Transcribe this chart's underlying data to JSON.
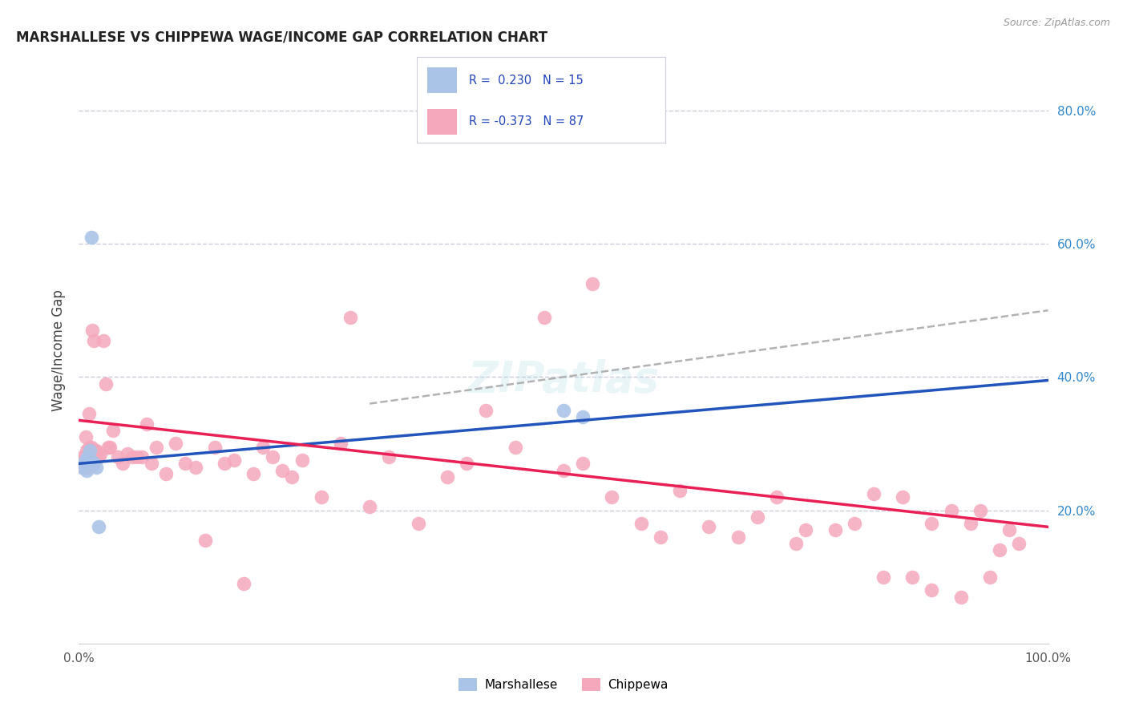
{
  "title": "MARSHALLESE VS CHIPPEWA WAGE/INCOME GAP CORRELATION CHART",
  "source": "Source: ZipAtlas.com",
  "ylabel": "Wage/Income Gap",
  "right_yticks": [
    "20.0%",
    "40.0%",
    "60.0%",
    "80.0%"
  ],
  "right_ytick_vals": [
    0.2,
    0.4,
    0.6,
    0.8
  ],
  "marshallese_color": "#aac4e8",
  "chippewa_color": "#f5a8bc",
  "marshallese_line_color": "#2255bb",
  "chippewa_line_color": "#e82055",
  "dashed_line_color": "#aaaaaa",
  "background_color": "#ffffff",
  "grid_color": "#ccccdd",
  "legend_box_color": "#f0f4ff",
  "marshallese_x": [
    0.003,
    0.005,
    0.006,
    0.007,
    0.008,
    0.009,
    0.01,
    0.011,
    0.012,
    0.013,
    0.015,
    0.018,
    0.02,
    0.5,
    0.52
  ],
  "marshallese_y": [
    0.265,
    0.27,
    0.27,
    0.275,
    0.26,
    0.28,
    0.275,
    0.29,
    0.275,
    0.61,
    0.27,
    0.265,
    0.175,
    0.35,
    0.34
  ],
  "chippewa_x": [
    0.003,
    0.004,
    0.005,
    0.006,
    0.007,
    0.008,
    0.009,
    0.01,
    0.01,
    0.011,
    0.012,
    0.013,
    0.014,
    0.015,
    0.016,
    0.018,
    0.02,
    0.022,
    0.025,
    0.028,
    0.03,
    0.032,
    0.035,
    0.04,
    0.045,
    0.05,
    0.055,
    0.06,
    0.065,
    0.07,
    0.075,
    0.08,
    0.09,
    0.1,
    0.11,
    0.12,
    0.13,
    0.14,
    0.15,
    0.16,
    0.17,
    0.18,
    0.19,
    0.2,
    0.21,
    0.22,
    0.23,
    0.25,
    0.27,
    0.28,
    0.3,
    0.32,
    0.35,
    0.38,
    0.4,
    0.42,
    0.45,
    0.48,
    0.5,
    0.52,
    0.53,
    0.55,
    0.58,
    0.6,
    0.62,
    0.65,
    0.68,
    0.7,
    0.72,
    0.74,
    0.75,
    0.78,
    0.8,
    0.82,
    0.83,
    0.85,
    0.86,
    0.88,
    0.88,
    0.9,
    0.91,
    0.92,
    0.93,
    0.94,
    0.95,
    0.96,
    0.97
  ],
  "chippewa_y": [
    0.275,
    0.28,
    0.265,
    0.28,
    0.31,
    0.29,
    0.265,
    0.295,
    0.345,
    0.265,
    0.28,
    0.295,
    0.47,
    0.455,
    0.29,
    0.29,
    0.28,
    0.285,
    0.455,
    0.39,
    0.295,
    0.295,
    0.32,
    0.28,
    0.27,
    0.285,
    0.28,
    0.28,
    0.28,
    0.33,
    0.27,
    0.295,
    0.255,
    0.3,
    0.27,
    0.265,
    0.155,
    0.295,
    0.27,
    0.275,
    0.09,
    0.255,
    0.295,
    0.28,
    0.26,
    0.25,
    0.275,
    0.22,
    0.3,
    0.49,
    0.205,
    0.28,
    0.18,
    0.25,
    0.27,
    0.35,
    0.295,
    0.49,
    0.26,
    0.27,
    0.54,
    0.22,
    0.18,
    0.16,
    0.23,
    0.175,
    0.16,
    0.19,
    0.22,
    0.15,
    0.17,
    0.17,
    0.18,
    0.225,
    0.1,
    0.22,
    0.1,
    0.18,
    0.08,
    0.2,
    0.07,
    0.18,
    0.2,
    0.1,
    0.14,
    0.17,
    0.15
  ],
  "xlim": [
    0.0,
    1.0
  ],
  "ylim": [
    0.0,
    0.88
  ],
  "marshallese_trend_x0": 0.0,
  "marshallese_trend_x1": 1.0,
  "marshallese_trend_y0": 0.27,
  "marshallese_trend_y1": 0.395,
  "chippewa_trend_x0": 0.0,
  "chippewa_trend_x1": 1.0,
  "chippewa_trend_y0": 0.335,
  "chippewa_trend_y1": 0.175,
  "dashed_trend_x0": 0.3,
  "dashed_trend_x1": 1.0,
  "dashed_trend_y0": 0.36,
  "dashed_trend_y1": 0.5
}
